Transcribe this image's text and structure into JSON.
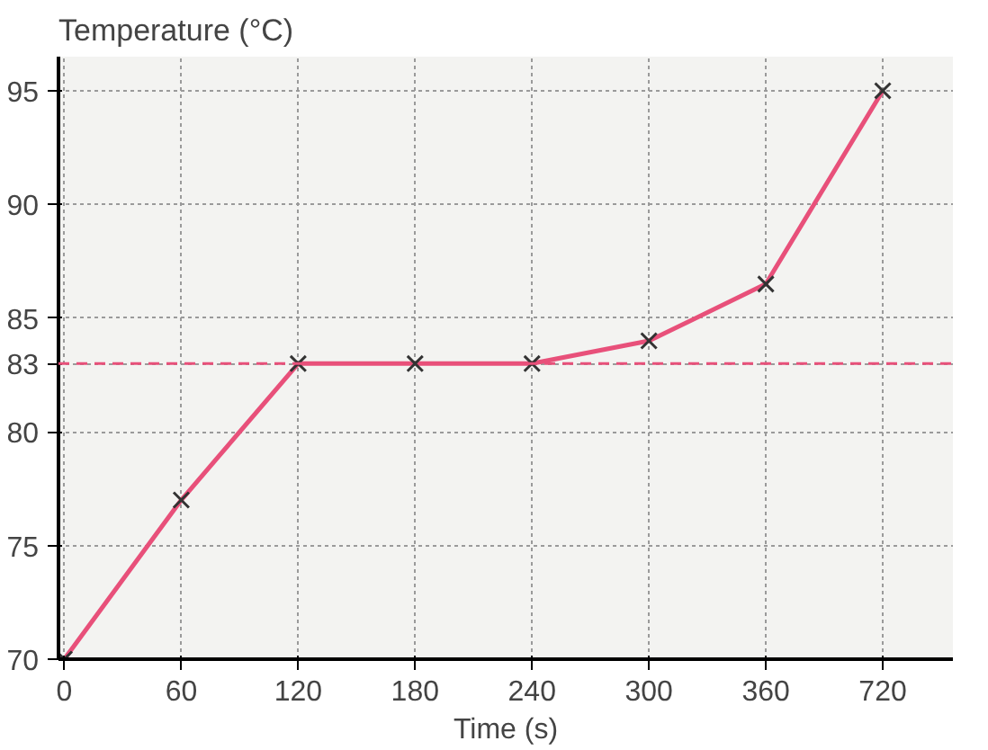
{
  "chart_data": {
    "type": "line",
    "xlabel": "Time (s)",
    "ylabel": "Temperature (°C)",
    "categories": [
      "0",
      "60",
      "120",
      "180",
      "240",
      "300",
      "360",
      "720"
    ],
    "series": [
      {
        "color": "#e8507a",
        "values": [
          70,
          77,
          83,
          83,
          83,
          84,
          86.5,
          95
        ]
      }
    ],
    "ylim": [
      70,
      96.5
    ],
    "yticks": [
      70,
      75,
      80,
      83,
      85,
      90,
      95
    ],
    "ref_lines": [
      {
        "axis": "y",
        "value": 83,
        "color": "#e8507a",
        "line_style": "dashed"
      }
    ],
    "grid": true,
    "marker": "cross",
    "line_style": "solid"
  }
}
